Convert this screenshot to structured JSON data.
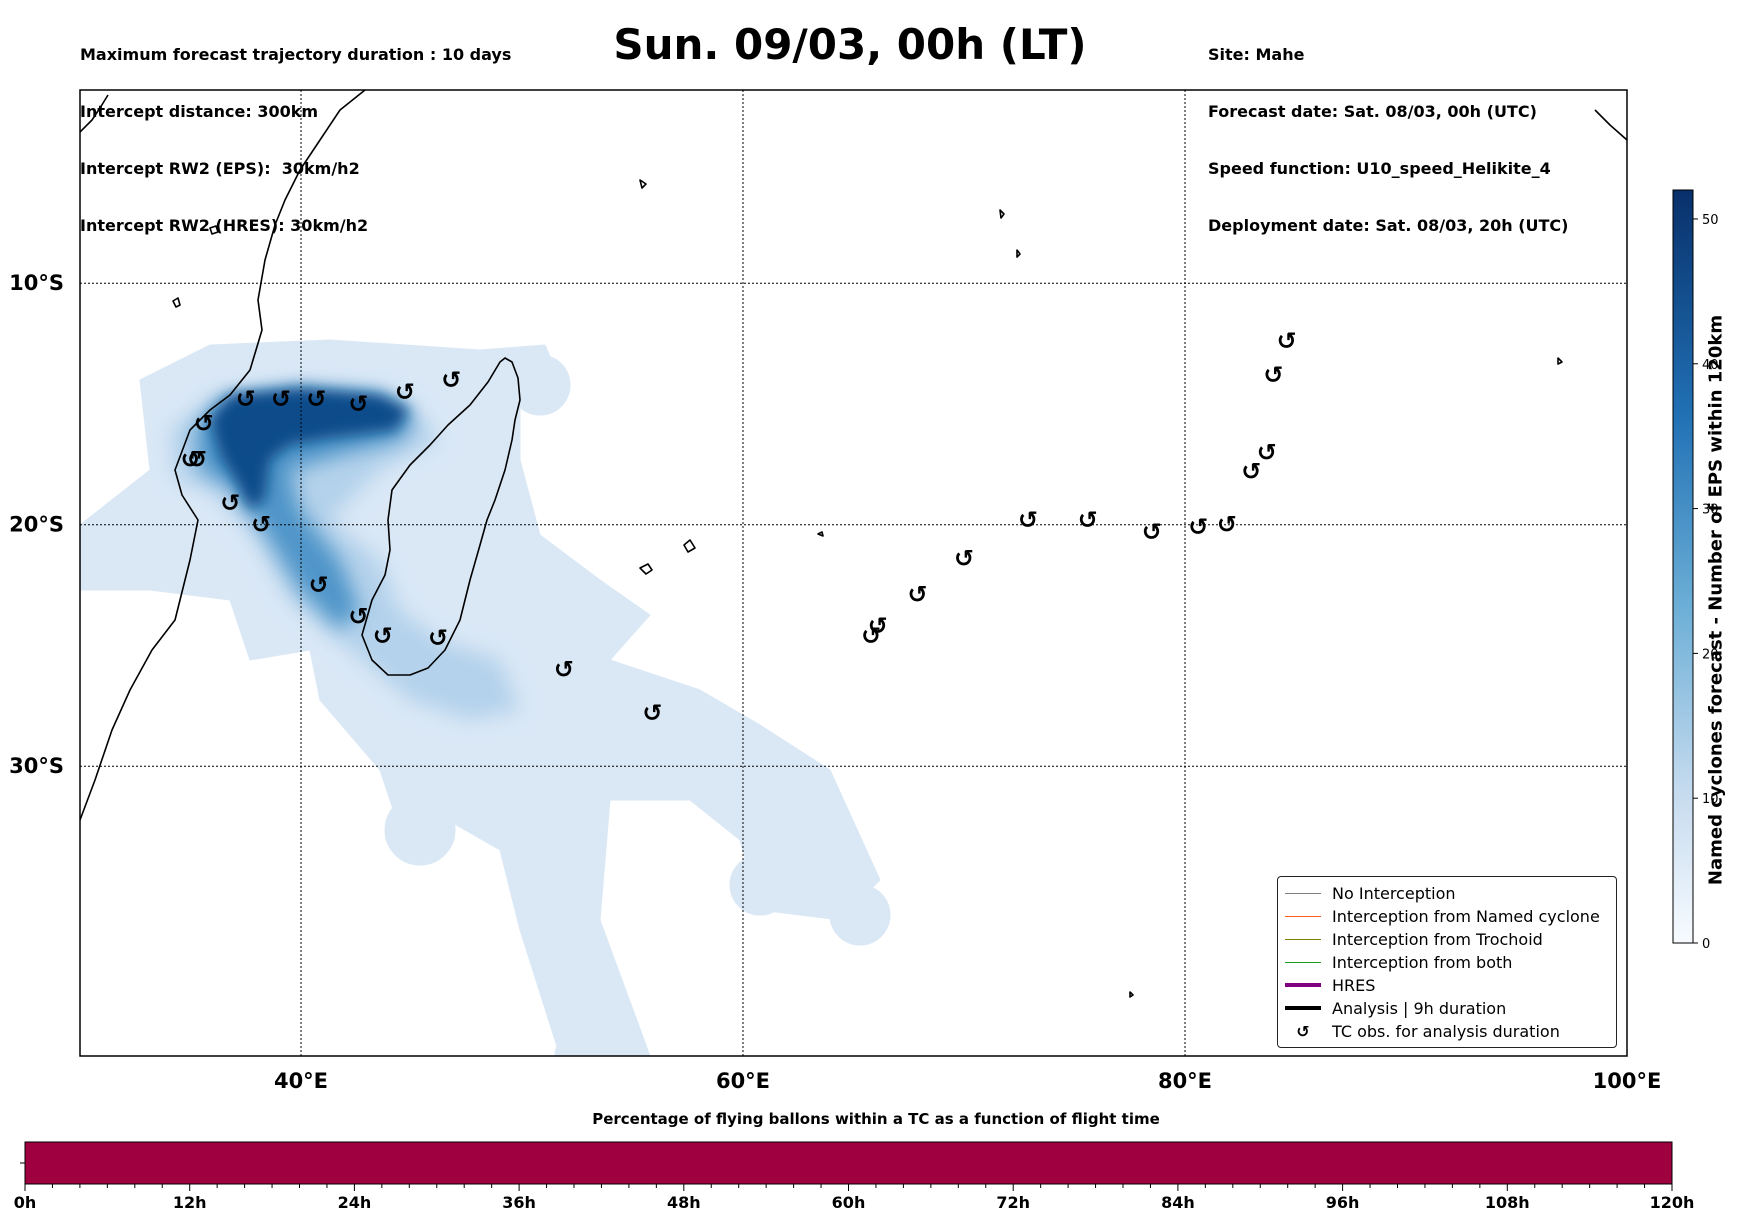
{
  "header": {
    "left_lines": [
      "Maximum forecast trajectory duration : 10 days",
      "Intercept distance: 300km",
      "Intercept RW2 (EPS):  30km/h2",
      "Intercept RW2 (HRES): 30km/h2"
    ],
    "title": "Sun. 09/03, 00h (LT)",
    "right_lines": [
      "Site: Mahe",
      "Forecast date: Sat. 08/03, 00h (UTC)",
      "Speed function: U10_speed_Helikite_4",
      "Deployment date: Sat. 08/03, 20h (UTC)"
    ]
  },
  "map": {
    "lon_range": [
      30,
      100
    ],
    "lat_range": [
      -42,
      -2
    ],
    "lon_ticks": [
      {
        "value": 40,
        "label": "40°E"
      },
      {
        "value": 60,
        "label": "60°E"
      },
      {
        "value": 80,
        "label": "80°E"
      },
      {
        "value": 100,
        "label": "100°E"
      }
    ],
    "lat_ticks": [
      {
        "value": -10,
        "label": "10°S"
      },
      {
        "value": -20,
        "label": "20°S"
      },
      {
        "value": -30,
        "label": "30°S"
      }
    ],
    "grid": "dotted",
    "tc_symbol": "↺",
    "tc_obs": [
      [
        37.5,
        -14.8
      ],
      [
        39.1,
        -14.8
      ],
      [
        40.7,
        -14.8
      ],
      [
        42.6,
        -15.0
      ],
      [
        44.7,
        -14.5
      ],
      [
        46.8,
        -14.0
      ],
      [
        35.6,
        -15.8
      ],
      [
        35.3,
        -17.3
      ],
      [
        35.0,
        -17.3
      ],
      [
        36.8,
        -19.1
      ],
      [
        38.2,
        -20.0
      ],
      [
        40.8,
        -22.5
      ],
      [
        42.6,
        -23.8
      ],
      [
        43.7,
        -24.6
      ],
      [
        46.2,
        -24.7
      ],
      [
        51.9,
        -26.0
      ],
      [
        55.9,
        -27.8
      ],
      [
        65.8,
        -24.6
      ],
      [
        66.1,
        -24.2
      ],
      [
        67.9,
        -22.9
      ],
      [
        70.0,
        -21.4
      ],
      [
        72.9,
        -19.8
      ],
      [
        75.6,
        -19.8
      ],
      [
        78.5,
        -20.3
      ],
      [
        80.6,
        -20.1
      ],
      [
        81.9,
        -20.0
      ],
      [
        83.0,
        -17.8
      ],
      [
        83.7,
        -17.0
      ],
      [
        84.0,
        -13.8
      ],
      [
        84.6,
        -12.4
      ]
    ]
  },
  "density_colors": {
    "low": "#dae8f6",
    "light": "#c6dbef",
    "mid": "#6baed6",
    "high": "#2171b5",
    "peak": "#08306b"
  },
  "colorbar": {
    "label": "Named cyclones forecast - Number of EPS within 120km",
    "min": 0,
    "max": 52,
    "ticks": [
      0,
      10,
      20,
      30,
      40,
      50
    ],
    "color_low": "#f7fbff",
    "color_high": "#08306b"
  },
  "legend": {
    "items": [
      {
        "label": "No Interception",
        "color": "#808080",
        "kind": "line",
        "weight": "thin"
      },
      {
        "label": "Interception from Named cyclone",
        "color": "#ff5a1f",
        "kind": "line",
        "weight": "thin"
      },
      {
        "label": "Interception from Trochoid",
        "color": "#808000",
        "kind": "line",
        "weight": "thin"
      },
      {
        "label": "Interception from both",
        "color": "#1e9e1e",
        "kind": "line",
        "weight": "thin"
      },
      {
        "label": "HRES",
        "color": "#800080",
        "kind": "line",
        "weight": "thick"
      },
      {
        "label": "Analysis | 9h duration",
        "color": "#000000",
        "kind": "line",
        "weight": "thick"
      },
      {
        "label": "TC obs. for analysis duration",
        "color": "#000000",
        "kind": "symbol",
        "weight": "thin"
      }
    ]
  },
  "flight_time": {
    "title": "Percentage of flying ballons within a TC as a function of flight time",
    "bar_color": "#9e0040",
    "range_hours": [
      0,
      120
    ],
    "tick_labels": [
      "0h",
      "12h",
      "24h",
      "36h",
      "48h",
      "60h",
      "72h",
      "84h",
      "96h",
      "108h",
      "120h"
    ]
  }
}
